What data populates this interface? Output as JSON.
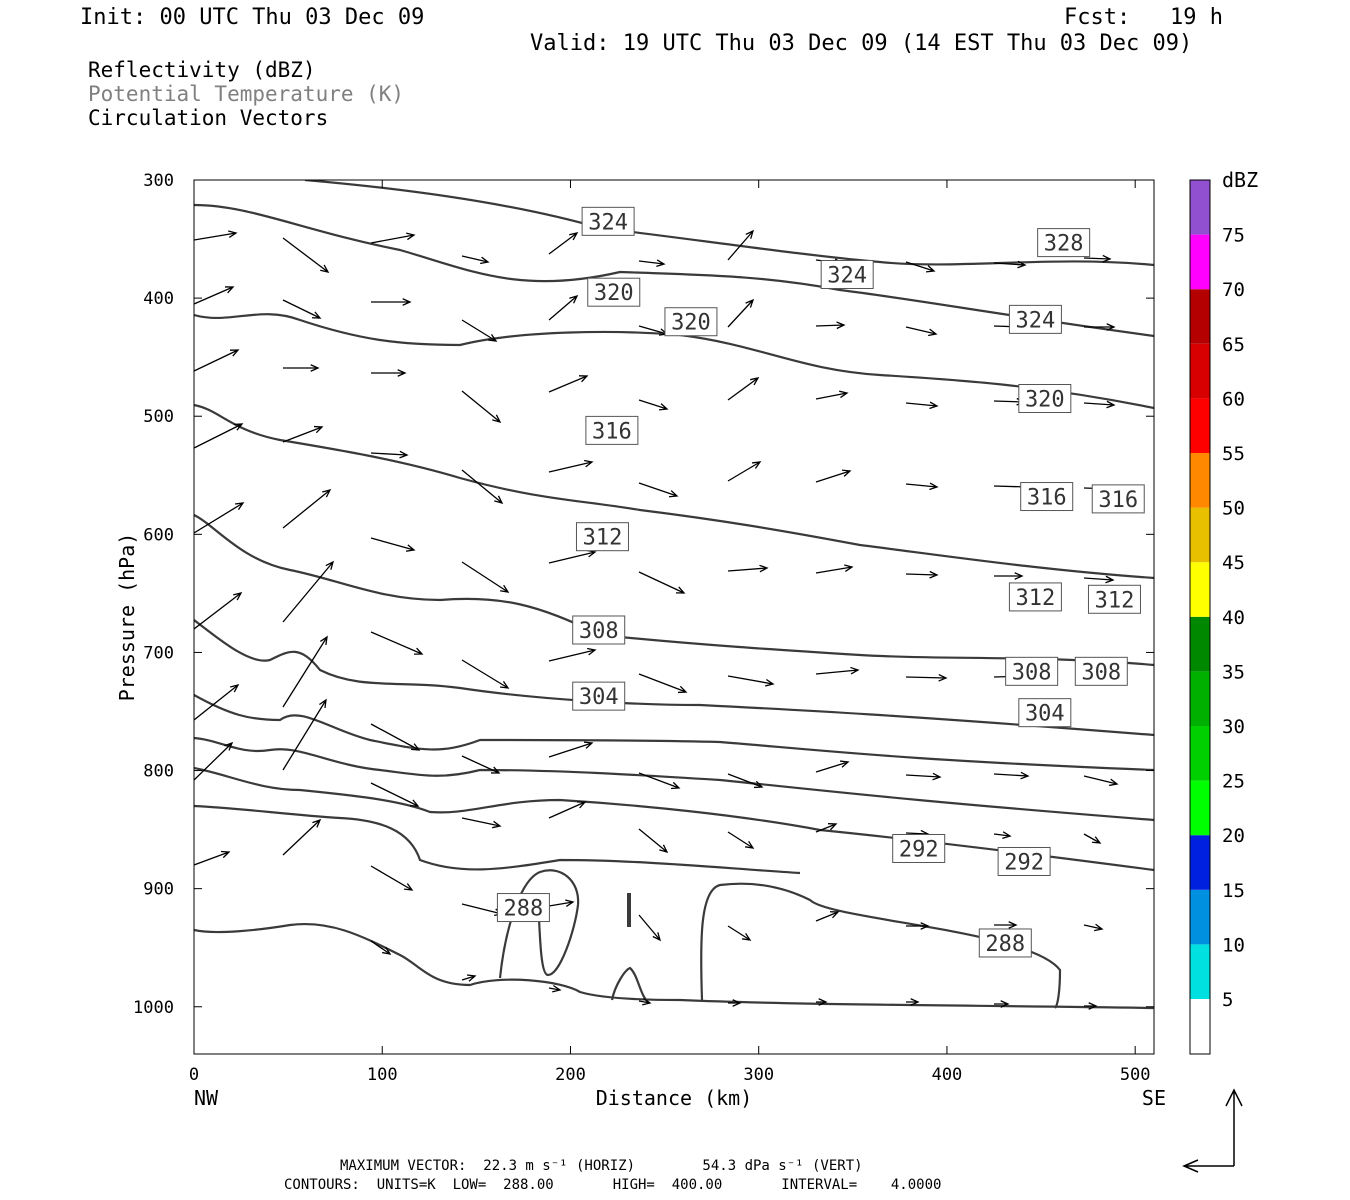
{
  "header": {
    "init": "Init: 00 UTC Thu 03 Dec 09",
    "fcst": "Fcst:   19 h",
    "valid": "Valid: 19 UTC Thu 03 Dec 09 (14 EST Thu 03 Dec 09)"
  },
  "legend_fields": {
    "reflectivity": "Reflectivity (dBZ)",
    "theta": "Potential Temperature (K)",
    "vectors": "Circulation Vectors"
  },
  "colors": {
    "contour": "#3a3a3a",
    "theta_text": "#808080",
    "colorbar": [
      "#00e0e0",
      "#0090e0",
      "#0020e0",
      "#00ff00",
      "#00d000",
      "#00b000",
      "#008800",
      "#ffff00",
      "#e8c000",
      "#ff8800",
      "#ff0000",
      "#d80000",
      "#b40000",
      "#ff00ff",
      "#9050d0"
    ]
  },
  "footer": {
    "line1": "MAXIMUM VECTOR:  22.3 m s⁻¹ (HORIZ)        54.3 dPa s⁻¹ (VERT)",
    "line2": "CONTOURS:  UNITS=K  LOW=  288.00       HIGH=  400.00       INTERVAL=    4.0000"
  },
  "chart_data": {
    "type": "line",
    "xlabel": "Distance (km)",
    "ylabel": "Pressure (hPa)",
    "xlim": [
      0,
      510
    ],
    "ylim": [
      1040,
      300
    ],
    "x_ticks": [
      "0",
      "100",
      "200",
      "300",
      "400",
      "500"
    ],
    "y_ticks": [
      "300",
      "400",
      "500",
      "600",
      "700",
      "800",
      "900",
      "1000"
    ],
    "x_end_labels": {
      "left": "NW",
      "right": "SE"
    },
    "colorbar": {
      "title": "dBZ",
      "labels": [
        "5",
        "10",
        "15",
        "20",
        "25",
        "30",
        "35",
        "40",
        "45",
        "50",
        "55",
        "60",
        "65",
        "70",
        "75"
      ]
    },
    "contour_labels": [
      {
        "text": "324",
        "x": 220,
        "p": 335
      },
      {
        "text": "328",
        "x": 462,
        "p": 353
      },
      {
        "text": "324",
        "x": 347,
        "p": 380
      },
      {
        "text": "320",
        "x": 223,
        "p": 395
      },
      {
        "text": "320",
        "x": 264,
        "p": 420
      },
      {
        "text": "324",
        "x": 447,
        "p": 418
      },
      {
        "text": "320",
        "x": 452,
        "p": 485
      },
      {
        "text": "316",
        "x": 222,
        "p": 512
      },
      {
        "text": "316",
        "x": 453,
        "p": 568
      },
      {
        "text": "316",
        "x": 491,
        "p": 570
      },
      {
        "text": "312",
        "x": 217,
        "p": 602
      },
      {
        "text": "312",
        "x": 447,
        "p": 653
      },
      {
        "text": "312",
        "x": 489,
        "p": 655
      },
      {
        "text": "308",
        "x": 215,
        "p": 681
      },
      {
        "text": "308",
        "x": 445,
        "p": 716
      },
      {
        "text": "308",
        "x": 482,
        "p": 716
      },
      {
        "text": "304",
        "x": 215,
        "p": 737
      },
      {
        "text": "304",
        "x": 452,
        "p": 751
      },
      {
        "text": "292",
        "x": 385,
        "p": 866
      },
      {
        "text": "292",
        "x": 441,
        "p": 877
      },
      {
        "text": "288",
        "x": 175,
        "p": 916
      },
      {
        "text": "288",
        "x": 431,
        "p": 946
      }
    ],
    "reference_vector": {
      "horiz": "22.3 m s⁻¹",
      "vert": "54.3 dPa s⁻¹"
    }
  }
}
